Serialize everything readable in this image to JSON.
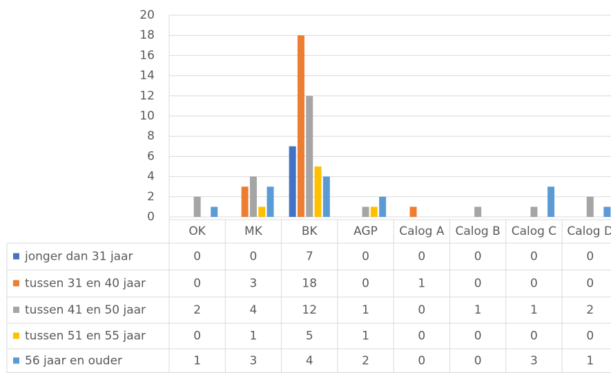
{
  "chart_data": {
    "type": "bar",
    "categories": [
      "OK",
      "MK",
      "BK",
      "AGP",
      "Calog A",
      "Calog B",
      "Calog C",
      "Calog D"
    ],
    "series": [
      {
        "name": "jonger dan 31 jaar",
        "color": "#4472c4",
        "values": [
          0,
          0,
          7,
          0,
          0,
          0,
          0,
          0
        ]
      },
      {
        "name": "tussen 31 en 40 jaar",
        "color": "#ed7d31",
        "values": [
          0,
          3,
          18,
          0,
          1,
          0,
          0,
          0
        ]
      },
      {
        "name": "tussen 41 en 50 jaar",
        "color": "#a5a5a5",
        "values": [
          2,
          4,
          12,
          1,
          0,
          1,
          1,
          2
        ]
      },
      {
        "name": "tussen 51 en 55 jaar",
        "color": "#ffc000",
        "values": [
          0,
          1,
          5,
          1,
          0,
          0,
          0,
          0
        ]
      },
      {
        "name": "56 jaar en ouder",
        "color": "#5b9bd5",
        "values": [
          1,
          3,
          4,
          2,
          0,
          0,
          3,
          1
        ]
      }
    ],
    "ylim": [
      0,
      20
    ],
    "yticks": [
      0,
      2,
      4,
      6,
      8,
      10,
      12,
      14,
      16,
      18,
      20
    ],
    "grid": true
  }
}
